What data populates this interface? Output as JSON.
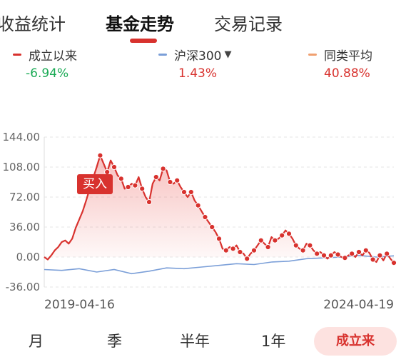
{
  "tabs": [
    {
      "label": "收益统计"
    },
    {
      "label": "基金走势"
    },
    {
      "label": "交易记录"
    }
  ],
  "legend": [
    {
      "label": "成立以来",
      "value": "-6.94%",
      "color": "#d8322e",
      "value_color": "#1aaa55"
    },
    {
      "label": "沪深300",
      "value": "1.43%",
      "color": "#7b9fd8",
      "value_color": "#d8322e",
      "caret": "▼"
    },
    {
      "label": "同类平均",
      "value": "40.88%",
      "color": "#f0a070",
      "value_color": "#d8322e"
    }
  ],
  "buy_label": "买入",
  "periods": [
    "月",
    "季",
    "半年",
    "1年"
  ],
  "period_active": "成立来",
  "chart_data": {
    "type": "line",
    "y_ticks": [
      "144.00",
      "108.00",
      "72.00",
      "36.00",
      "0.00",
      "-36.00"
    ],
    "ylim": [
      -36,
      144
    ],
    "x_labels": [
      "2019-04-16",
      "2024-04-19"
    ],
    "grid": true,
    "series": [
      {
        "name": "成立以来",
        "color": "#d8322e",
        "x": [
          0,
          1,
          2,
          3,
          4,
          5,
          6,
          7,
          8,
          9,
          10,
          11,
          12,
          13,
          14,
          15,
          16,
          17,
          18,
          19,
          20,
          21,
          22,
          23,
          24,
          25,
          26,
          27,
          28,
          29,
          30,
          31,
          32,
          33,
          34,
          35,
          36,
          37,
          38,
          39,
          40,
          41,
          42,
          43,
          44,
          45,
          46,
          47,
          48,
          49,
          50,
          51,
          52,
          53,
          54,
          55,
          56,
          57,
          58,
          59,
          60,
          61,
          62,
          63,
          64,
          65,
          66,
          67,
          68,
          69,
          70,
          71,
          72,
          73,
          74,
          75,
          76,
          77,
          78,
          79,
          80,
          81,
          82,
          83,
          84,
          85,
          86,
          87,
          88,
          89,
          90,
          91,
          92,
          93,
          94,
          95,
          96,
          97,
          98,
          99,
          100
        ],
        "y": [
          0,
          -3,
          2,
          8,
          12,
          18,
          20,
          16,
          22,
          35,
          45,
          55,
          68,
          82,
          95,
          108,
          122,
          112,
          102,
          116,
          108,
          98,
          94,
          82,
          84,
          88,
          86,
          96,
          82,
          72,
          66,
          88,
          96,
          92,
          106,
          104,
          90,
          88,
          92,
          84,
          78,
          72,
          78,
          68,
          62,
          55,
          48,
          42,
          36,
          30,
          22,
          10,
          8,
          12,
          10,
          14,
          6,
          4,
          -2,
          4,
          8,
          14,
          20,
          16,
          12,
          24,
          20,
          22,
          26,
          32,
          28,
          22,
          14,
          10,
          8,
          16,
          14,
          8,
          4,
          6,
          2,
          -2,
          2,
          6,
          3,
          0,
          -1,
          2,
          4,
          0,
          6,
          2,
          8,
          5,
          -3,
          -6,
          2,
          -4,
          4,
          -2,
          -6.94
        ]
      },
      {
        "name": "沪深300",
        "color": "#7b9fd8",
        "x": [
          0,
          5,
          10,
          15,
          20,
          25,
          30,
          35,
          40,
          45,
          50,
          55,
          60,
          65,
          70,
          75,
          80,
          85,
          90,
          95,
          100
        ],
        "y": [
          -15,
          -16,
          -14,
          -18,
          -15,
          -20,
          -17,
          -13,
          -14,
          -12,
          -10,
          -8,
          -9,
          -6,
          -5,
          -2,
          -1,
          0,
          2,
          0,
          1.43
        ]
      }
    ]
  }
}
